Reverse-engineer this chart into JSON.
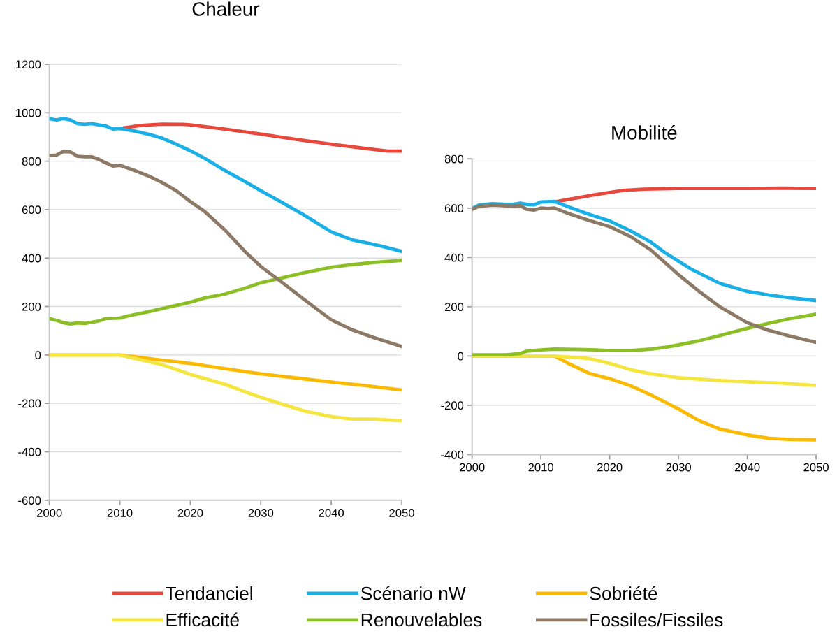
{
  "chart_data": [
    {
      "type": "line",
      "title": "Chaleur",
      "xlim": [
        2000,
        2050
      ],
      "xticks": [
        2000,
        2010,
        2020,
        2030,
        2040,
        2050
      ],
      "ylim": [
        -600,
        1200
      ],
      "yticks": [
        -600,
        -400,
        -200,
        0,
        200,
        400,
        600,
        800,
        1000,
        1200
      ],
      "grid": "y",
      "legend": "bottom",
      "marker": "none",
      "line_style": "solid",
      "series": [
        {
          "name": "Tendanciel",
          "color": "#e8483b",
          "x": [
            2010,
            2013,
            2016,
            2019,
            2020,
            2025,
            2030,
            2035,
            2040,
            2045,
            2048,
            2050
          ],
          "values": [
            935,
            948,
            953,
            952,
            950,
            932,
            912,
            890,
            870,
            852,
            842,
            842
          ]
        },
        {
          "name": "Scénario nW",
          "color": "#1aafe6",
          "x": [
            2000,
            2001,
            2002,
            2003,
            2004,
            2005,
            2006,
            2007,
            2008,
            2009,
            2010,
            2012,
            2014,
            2016,
            2018,
            2020,
            2022,
            2025,
            2028,
            2030,
            2033,
            2036,
            2040,
            2043,
            2045,
            2047,
            2050
          ],
          "values": [
            975,
            970,
            976,
            970,
            955,
            952,
            955,
            950,
            945,
            933,
            935,
            925,
            912,
            895,
            870,
            843,
            812,
            760,
            712,
            678,
            630,
            580,
            508,
            475,
            463,
            450,
            428
          ]
        },
        {
          "name": "Sobriété",
          "color": "#fbb900",
          "x": [
            2000,
            2010,
            2015,
            2020,
            2025,
            2030,
            2035,
            2040,
            2045,
            2050
          ],
          "values": [
            0,
            0,
            -18,
            -35,
            -57,
            -78,
            -95,
            -112,
            -127,
            -145
          ]
        },
        {
          "name": "Efficacité",
          "color": "#f4e53f",
          "x": [
            2000,
            2010,
            2013,
            2016,
            2020,
            2025,
            2028,
            2030,
            2033,
            2036,
            2040,
            2043,
            2046,
            2050
          ],
          "values": [
            0,
            0,
            -20,
            -40,
            -80,
            -122,
            -155,
            -175,
            -203,
            -230,
            -255,
            -265,
            -265,
            -272
          ]
        },
        {
          "name": "Renouvelables",
          "color": "#8cbf26",
          "x": [
            2000,
            2001,
            2002,
            2003,
            2004,
            2005,
            2006,
            2007,
            2008,
            2010,
            2011,
            2014,
            2018,
            2020,
            2022,
            2025,
            2028,
            2030,
            2033,
            2036,
            2040,
            2043,
            2046,
            2050
          ],
          "values": [
            150,
            143,
            133,
            128,
            132,
            130,
            135,
            140,
            150,
            152,
            160,
            178,
            205,
            218,
            235,
            252,
            278,
            298,
            318,
            338,
            362,
            373,
            382,
            390
          ]
        },
        {
          "name": "Fossiles/Fissiles",
          "color": "#8c7966",
          "x": [
            2000,
            2001,
            2002,
            2003,
            2004,
            2005,
            2006,
            2007,
            2008,
            2009,
            2010,
            2012,
            2014,
            2016,
            2018,
            2020,
            2022,
            2025,
            2028,
            2030,
            2033,
            2036,
            2040,
            2043,
            2046,
            2050
          ],
          "values": [
            823,
            825,
            840,
            838,
            820,
            818,
            818,
            808,
            793,
            780,
            783,
            763,
            740,
            712,
            678,
            633,
            593,
            513,
            420,
            365,
            300,
            232,
            145,
            103,
            72,
            35
          ]
        }
      ]
    },
    {
      "type": "line",
      "title": "Mobilité",
      "xlim": [
        2000,
        2050
      ],
      "xticks": [
        2000,
        2010,
        2020,
        2030,
        2040,
        2050
      ],
      "ylim": [
        -400,
        800
      ],
      "yticks": [
        -400,
        -200,
        0,
        200,
        400,
        600,
        800
      ],
      "grid": "y",
      "marker": "none",
      "line_style": "solid",
      "series": [
        {
          "color": "#e8483b",
          "x": [
            2012,
            2015,
            2018,
            2022,
            2025,
            2030,
            2035,
            2040,
            2045,
            2050
          ],
          "values": [
            625,
            640,
            655,
            672,
            677,
            680,
            680,
            680,
            681,
            680
          ]
        },
        {
          "color": "#1aafe6",
          "x": [
            2000,
            2001,
            2003,
            2005,
            2006,
            2007,
            2008,
            2009,
            2010,
            2012,
            2014,
            2017,
            2020,
            2023,
            2026,
            2028,
            2030,
            2032,
            2036,
            2040,
            2043,
            2046,
            2050
          ],
          "values": [
            598,
            612,
            618,
            615,
            615,
            620,
            615,
            613,
            625,
            627,
            605,
            575,
            548,
            508,
            462,
            420,
            385,
            350,
            295,
            262,
            248,
            237,
            225
          ]
        },
        {
          "color": "#fbb900",
          "x": [
            2000,
            2012,
            2014,
            2017,
            2020,
            2023,
            2026,
            2030,
            2033,
            2036,
            2040,
            2043,
            2046,
            2050
          ],
          "values": [
            0,
            0,
            -30,
            -70,
            -92,
            -120,
            -158,
            -215,
            -262,
            -296,
            -320,
            -333,
            -338,
            -340
          ]
        },
        {
          "color": "#f4e53f",
          "x": [
            2000,
            2012,
            2017,
            2020,
            2023,
            2026,
            2030,
            2035,
            2040,
            2045,
            2050
          ],
          "values": [
            0,
            0,
            -10,
            -30,
            -55,
            -72,
            -88,
            -98,
            -105,
            -110,
            -120
          ]
        },
        {
          "color": "#8cbf26",
          "x": [
            2000,
            2005,
            2007,
            2008,
            2010,
            2012,
            2015,
            2018,
            2020,
            2023,
            2026,
            2028,
            2030,
            2033,
            2036,
            2040,
            2043,
            2046,
            2050
          ],
          "values": [
            5,
            5,
            10,
            20,
            25,
            28,
            27,
            25,
            22,
            22,
            28,
            35,
            45,
            62,
            83,
            112,
            132,
            150,
            170
          ]
        },
        {
          "color": "#8c7966",
          "x": [
            2000,
            2001,
            2003,
            2006,
            2007,
            2008,
            2009,
            2010,
            2011,
            2012,
            2014,
            2017,
            2020,
            2023,
            2026,
            2028,
            2030,
            2033,
            2036,
            2040,
            2043,
            2046,
            2050
          ],
          "values": [
            595,
            607,
            612,
            608,
            610,
            595,
            592,
            600,
            598,
            600,
            578,
            550,
            525,
            485,
            430,
            380,
            330,
            262,
            200,
            135,
            105,
            82,
            55
          ]
        }
      ]
    }
  ]
}
